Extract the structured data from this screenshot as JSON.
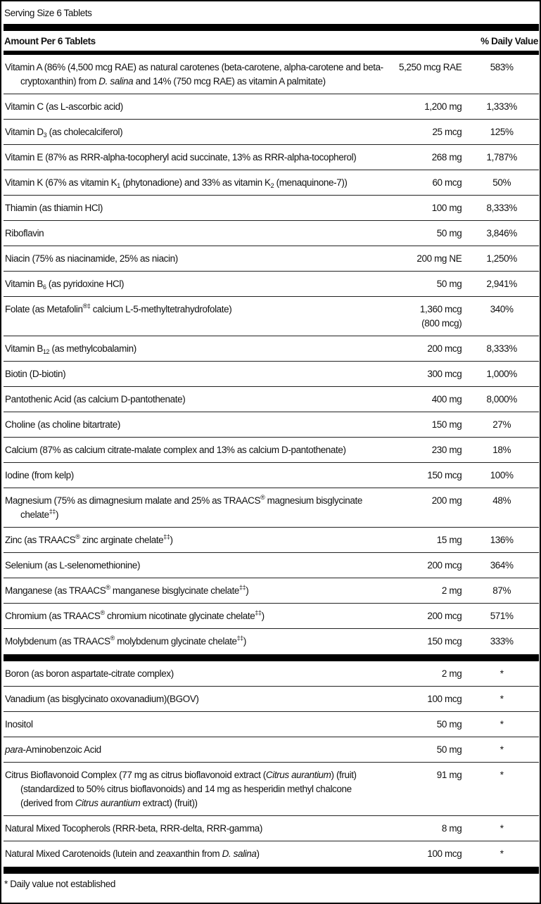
{
  "serving_size": "Serving Size 6 Tablets",
  "header": {
    "amount_label": "Amount Per 6 Tablets",
    "dv_label": "% Daily Value"
  },
  "section1": [
    {
      "name": [
        {
          "t": "Vitamin A (86% (4,500 mcg RAE) as natural carotenes (beta-carotene, alpha-carotene and beta-cryptoxanthin) from "
        },
        {
          "i": "D. salina"
        },
        {
          "t": " and 14% (750 mcg RAE) as vitamin A palmitate)"
        }
      ],
      "amount": "5,250 mcg RAE",
      "dv": "583%"
    },
    {
      "name": [
        {
          "t": "Vitamin C (as L-ascorbic acid)"
        }
      ],
      "amount": "1,200 mg",
      "dv": "1,333%"
    },
    {
      "name": [
        {
          "t": "Vitamin D"
        },
        {
          "sub": "3"
        },
        {
          "t": " (as cholecalciferol)"
        }
      ],
      "amount": "25 mcg",
      "dv": "125%"
    },
    {
      "name": [
        {
          "t": "Vitamin E (87% as RRR-alpha-tocopheryl acid succinate, 13% as RRR-alpha-tocopherol)"
        }
      ],
      "amount": "268 mg",
      "dv": "1,787%"
    },
    {
      "name": [
        {
          "t": "Vitamin K (67% as vitamin K"
        },
        {
          "sub": "1"
        },
        {
          "t": " (phytonadione) and 33% as vitamin K"
        },
        {
          "sub": "2"
        },
        {
          "t": " (menaquinone-7))"
        }
      ],
      "amount": "60 mcg",
      "dv": "50%"
    },
    {
      "name": [
        {
          "t": "Thiamin (as thiamin HCl)"
        }
      ],
      "amount": "100 mg",
      "dv": "8,333%"
    },
    {
      "name": [
        {
          "t": "Riboflavin"
        }
      ],
      "amount": "50 mg",
      "dv": "3,846%"
    },
    {
      "name": [
        {
          "t": "Niacin (75% as niacinamide, 25% as niacin)"
        }
      ],
      "amount": "200 mg NE",
      "dv": "1,250%"
    },
    {
      "name": [
        {
          "t": "Vitamin B"
        },
        {
          "sub": "6"
        },
        {
          "t": " (as pyridoxine HCl)"
        }
      ],
      "amount": "50 mg",
      "dv": "2,941%"
    },
    {
      "name": [
        {
          "t": "Folate (as Metafolin"
        },
        {
          "sup": "®‡"
        },
        {
          "t": " calcium L-5-methyltetrahydrofolate)"
        }
      ],
      "amount": "1,360 mcg",
      "amount2": "(800 mcg)",
      "dv": "340%"
    },
    {
      "name": [
        {
          "t": "Vitamin B"
        },
        {
          "sub": "12"
        },
        {
          "t": " (as methylcobalamin)"
        }
      ],
      "amount": "200 mcg",
      "dv": "8,333%"
    },
    {
      "name": [
        {
          "t": "Biotin (D-biotin)"
        }
      ],
      "amount": "300 mcg",
      "dv": "1,000%"
    },
    {
      "name": [
        {
          "t": "Pantothenic Acid (as calcium D-pantothenate)"
        }
      ],
      "amount": "400 mg",
      "dv": "8,000%"
    },
    {
      "name": [
        {
          "t": "Choline (as choline bitartrate)"
        }
      ],
      "amount": "150 mg",
      "dv": "27%"
    },
    {
      "name": [
        {
          "t": "Calcium (87% as calcium citrate-malate complex and 13% as calcium D-pantothenate)"
        }
      ],
      "amount": "230 mg",
      "dv": "18%"
    },
    {
      "name": [
        {
          "t": "Iodine (from kelp)"
        }
      ],
      "amount": "150 mcg",
      "dv": "100%"
    },
    {
      "name": [
        {
          "t": "Magnesium (75% as dimagnesium malate and 25% as TRAACS"
        },
        {
          "sup": "®"
        },
        {
          "t": " magnesium bisglycinate chelate"
        },
        {
          "sup": "‡‡"
        },
        {
          "t": ")"
        }
      ],
      "amount": "200 mg",
      "dv": "48%"
    },
    {
      "name": [
        {
          "t": "Zinc (as TRAACS"
        },
        {
          "sup": "®"
        },
        {
          "t": " zinc arginate chelate"
        },
        {
          "sup": "‡‡"
        },
        {
          "t": ")"
        }
      ],
      "amount": "15 mg",
      "dv": "136%"
    },
    {
      "name": [
        {
          "t": "Selenium (as L-selenomethionine)"
        }
      ],
      "amount": "200 mcg",
      "dv": "364%"
    },
    {
      "name": [
        {
          "t": "Manganese (as TRAACS"
        },
        {
          "sup": "®"
        },
        {
          "t": " manganese bisglycinate chelate"
        },
        {
          "sup": "‡‡"
        },
        {
          "t": ")"
        }
      ],
      "amount": "2 mg",
      "dv": "87%"
    },
    {
      "name": [
        {
          "t": "Chromium (as TRAACS"
        },
        {
          "sup": "®"
        },
        {
          "t": " chromium nicotinate glycinate chelate"
        },
        {
          "sup": "‡‡"
        },
        {
          "t": ")"
        }
      ],
      "amount": "200 mcg",
      "dv": "571%"
    },
    {
      "name": [
        {
          "t": "Molybdenum (as TRAACS"
        },
        {
          "sup": "®"
        },
        {
          "t": " molybdenum glycinate chelate"
        },
        {
          "sup": "‡‡"
        },
        {
          "t": ")"
        }
      ],
      "amount": "150 mcg",
      "dv": "333%"
    }
  ],
  "section2": [
    {
      "name": [
        {
          "t": "Boron (as boron aspartate-citrate complex)"
        }
      ],
      "amount": "2 mg",
      "dv": "*"
    },
    {
      "name": [
        {
          "t": "Vanadium (as bisglycinato oxovanadium)(BGOV)"
        }
      ],
      "amount": "100 mcg",
      "dv": "*"
    },
    {
      "name": [
        {
          "t": "Inositol"
        }
      ],
      "amount": "50 mg",
      "dv": "*"
    },
    {
      "name": [
        {
          "i": "para"
        },
        {
          "t": "-Aminobenzoic Acid"
        }
      ],
      "amount": "50 mg",
      "dv": "*"
    },
    {
      "name": [
        {
          "t": "Citrus Bioflavonoid Complex (77 mg as citrus bioflavonoid extract ("
        },
        {
          "i": "Citrus aurantium"
        },
        {
          "t": ") (fruit) (standardized to 50% citrus bioflavonoids) and 14 mg as hesperidin methyl chalcone (derived from "
        },
        {
          "i": "Citrus aurantium"
        },
        {
          "t": " extract) (fruit))"
        }
      ],
      "amount": "91 mg",
      "dv": "*"
    },
    {
      "name": [
        {
          "t": "Natural Mixed Tocopherols (RRR-beta, RRR-delta, RRR-gamma)"
        }
      ],
      "amount": "8 mg",
      "dv": "*"
    },
    {
      "name": [
        {
          "t": "Natural Mixed Carotenoids (lutein and zeaxanthin from "
        },
        {
          "i": "D. salina"
        },
        {
          "t": ")"
        }
      ],
      "amount": "100 mcg",
      "dv": "*"
    }
  ],
  "footnote": "* Daily value not established"
}
